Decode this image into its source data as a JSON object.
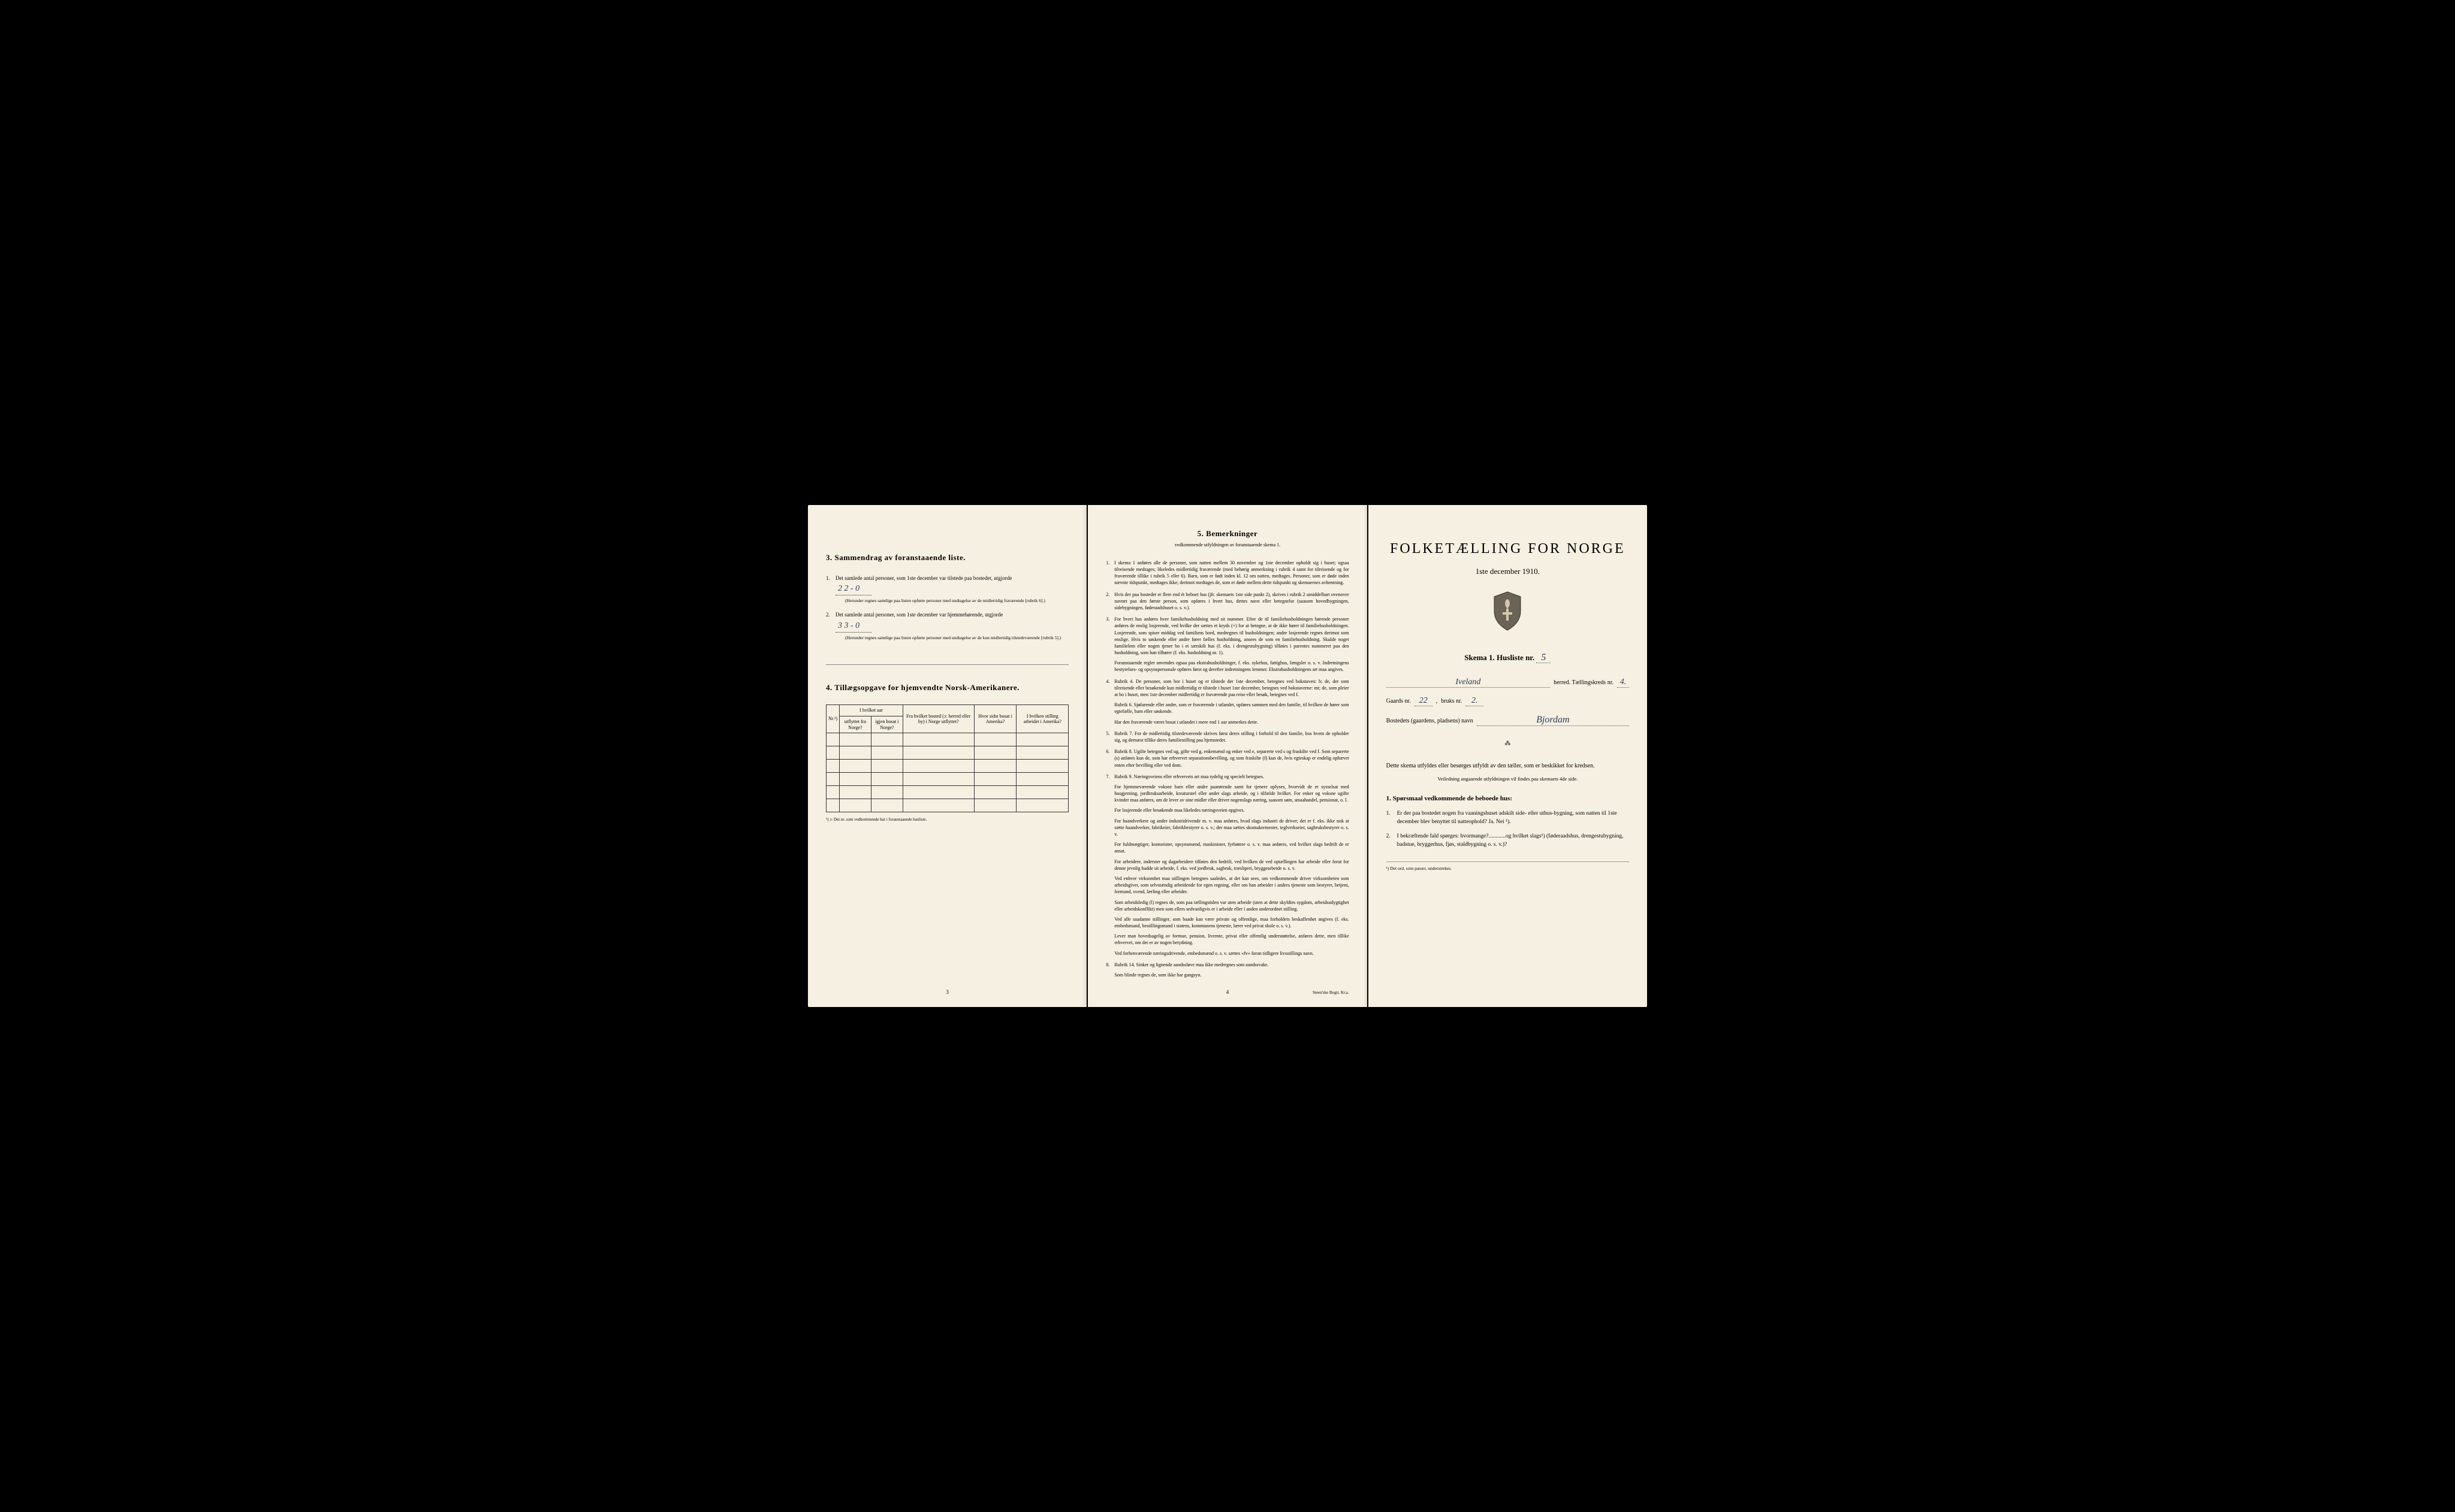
{
  "colors": {
    "page_bg": "#f5f0e1",
    "frame_bg": "#000000",
    "text": "#1a1a1a",
    "handwriting": "#2a3a5a",
    "border": "#333333"
  },
  "left": {
    "section3": {
      "heading": "3.   Sammendrag av foranstaaende liste.",
      "item1_text": "Det samlede antal personer, som 1ste december var tilstede paa bostedet, utgjorde",
      "item1_num": "1.",
      "item1_value": "2   2 - 0",
      "item1_note": "(Herunder regnes samtlige paa listen opførte personer med undtagelse av de midlertidig fraværende [rubrik 6].)",
      "item2_text": "Det samlede antal personer, som 1ste december var hjemmehørende, utgjorde",
      "item2_num": "2.",
      "item2_value": "3   3 - 0",
      "item2_note": "(Herunder regnes samtlige paa listen opførte personer med undtagelse av de kun midlertidig tilstedeværende [rubrik 5].)"
    },
    "section4": {
      "heading": "4.   Tillægsopgave for hjemvendte Norsk-Amerikanere.",
      "columns": {
        "col1": "Nr.¹)",
        "col2a": "I hvilket aar",
        "col2b": "utflyttet fra Norge?",
        "col2c": "igjen bosat i Norge?",
        "col3": "Fra hvilket bosted (ɔ: herred eller by) i Norge utflyttet?",
        "col4": "Hvor sidst bosat i Amerika?",
        "col5": "I hvilken stilling arbeidet i Amerika?"
      },
      "footnote": "¹) ɔ: Det nr. som vedkommende har i foranstaaende husliste.",
      "empty_rows": 6
    },
    "page_num": "3"
  },
  "middle": {
    "heading": "5.   Bemerkninger",
    "subtitle": "vedkommende utfyldningen av foranstaaende skema 1.",
    "items": [
      {
        "n": "1.",
        "text": "I skema 1 anføres alle de personer, som natten mellem 30 november og 1ste december opholdt sig i huset; ogsaa tilreisende medtages; likeledes midlertidig fraværende (med behørig anmerkning i rubrik 4 samt for tilreisende og for fraværende tillike i rubrik 5 eller 6). Barn, som er født inden kl. 12 om natten, medtages. Personer, som er døde inden nævnte tidspunkt, medtages ikke; derimot medtages de, som er døde mellem dette tidspunkt og skemaernes avhentning."
      },
      {
        "n": "2.",
        "text": "Hvis der paa bostedet er flere end ét beboet hus (jfr. skemaets 1ste side punkt 2), skrives i rubrik 2 umiddelbart ovenover navnet paa den første person, som opføres i hvert hus, dettes navn eller betegnelse (saasom hovedbygningen, sidebygningen, føderaadshuset o. s. v.)."
      },
      {
        "n": "3.",
        "text": "For hvert hus anføres hver familiehusholdning med sit nummer. Efter de til familiehusholdningen hørende personer anføres de enslig losjerende, ved hvilke der sættes et kryds (×) for at betegne, at de ikke hører til familiehusholdningen. Losjerende, som spiser middag ved familiens bord, medregnes til husholdningen; andre losjerende regnes derimot som enslige. Hvis to søskende eller andre fører fælles husholdning, ansees de som en familiehusholdning. Skulde noget familielem eller nogen tjener bo i et særskilt hus (f. eks. i drengestubygning) tilføies i parentes nummeret paa den husholdning, som han tilhører (f. eks. husholdning nr. 1).",
        "extra": "Foranstaaende regler anvendes ogsaa paa ekstrahusholdninger, f. eks. sykehus, fattighus, fængsler o. s. v. Indretningens bestyrelses- og opsynspersonale opføres først og derefter indretningens lemmer. Ekstrahusholdningens art maa angives."
      },
      {
        "n": "4.",
        "text": "Rubrik 4. De personer, som bor i huset og er tilstede der 1ste december, betegnes ved bokstaven: b; de, der som tilreisende eller besøkende kun midlertidig er tilstede i huset 1ste december, betegnes ved bokstaverne: mt; de, som pleier at bo i huset, men 1ste december midlertidig er fraværende paa reise eller besøk, betegnes ved f.",
        "sub1": "Rubrik 6. Sjøfarende eller andre, som er fraværende i utlandet, opføres sammen med den familie, til hvilken de hører som egtefælle, barn eller søskende.",
        "sub2": "Har den fraværende været bosat i utlandet i mere end 1 aar anmerkes dette."
      },
      {
        "n": "5.",
        "text": "Rubrik 7. For de midlertidig tilstedeværende skrives først deres stilling i forhold til den familie, hos hvem de opholder sig, og dernæst tillike deres familiestilling paa hjemstedet."
      },
      {
        "n": "6.",
        "text": "Rubrik 8. Ugifte betegnes ved ug, gifte ved g, enkemænd og enker ved e, separerte ved s og fraskilte ved f. Som separerte (s) anføres kun de, som har erhvervet separationsbevilling, og som fraskilte (f) kun de, hvis egteskap er endelig ophævet enten efter bevilling eller ved dom."
      },
      {
        "n": "7.",
        "text": "Rubrik 9. Næringsveiens eller erhvervets art maa tydelig og specielt betegnes.",
        "paras": [
          "For hjemmeværende voksne barn eller andre paarørende samt for tjenere oplyses, hvorvidt de er sysselsat med husgjerning, jordbruksarbeide, kreaturstel eller andet slags arbeide, og i tilfælde hvilket. For enker og voksne ugifte kvinder maa anføres, om de lever av sine midler eller driver nogenslags næring, saasom søm, smaahandel, pensionat, o. l.",
          "For losjerende eller besøkende maa likeledes næringsveien opgives.",
          "For haandverkere og andre industridrivende m. v. maa anføres, hvad slags industri de driver; det er f. eks. ikke nok at sætte haandverker, fabrikeier, fabrikbestyrer o. s. v.; der maa sættes skomakermester, teglverkseier, sagbruksbestyrer o. s. v.",
          "For fuldmægtiger, kontorister, opsynsmænd, maskinister, fyrbøtere o. s. v. maa anføres, ved hvilket slags bedrift de er ansat.",
          "For arbeidere, inderster og dagarbeidere tilføies den bedrift, ved hvilken de ved optællingen har arbeide eller forut for denne jevnlig hadde sit arbeide, f. eks. ved jordbruk, sagbruk, træsliperi, bryggearbeide o. s. v.",
          "Ved enhver virksomhet maa stillingen betegnes saaledes, at det kan sees, om vedkommende driver virksomheten som arbeidsgiver, som selvstændig arbeidende for egen regning, eller om han arbeider i andres tjeneste som bestyrer, betjent, formand, svend, lærling eller arbeider.",
          "Som arbeidsledig (l) regnes de, som paa tællingstiden var uten arbeide (uten at dette skyldtes sygdom, arbeidsudygtighet eller arbeidskonflikt) men som ellers sedvanligvis er i arbeide eller i anden underordnet stilling.",
          "Ved alle saadanne stillinger, som baade kan være private og offentlige, maa forholdets beskaffenhet angives (f. eks. embedsmand, bestillingsmand i statens, kommunens tjeneste, lærer ved privat skole o. s. v.).",
          "Lever man hovedsagelig av formue, pension, livrente, privat eller offentlig understøttelse, anføres dette, men tillike erhvervet, om det er av nogen betydning.",
          "Ved forhenværende næringsdrivende, embedsmænd o. s. v. sættes «fv» foran tidligere livsstillings navn."
        ]
      },
      {
        "n": "8.",
        "text": "Rubrik 14. Sinker og lignende aandssløve maa ikke medregnes som aandssvake.",
        "sub": "Som blinde regnes de, som ikke har gangsyn."
      }
    ],
    "page_num": "4",
    "printer": "Steen'ske Bogtr. Kr.a."
  },
  "right": {
    "main_title": "FOLKETÆLLING FOR NORGE",
    "date": "1ste december 1910.",
    "skema_label": "Skema 1.   Husliste nr.",
    "husliste_nr": "5",
    "herred_value": "Iveland",
    "herred_label": "herred.   Tællingskreds nr.",
    "kreds_nr": "4.",
    "gaards_label": "Gaards nr.",
    "gaards_nr": "22",
    "bruks_label": "bruks nr.",
    "bruks_nr": "2.",
    "bosted_label": "Bostedets (gaardens, pladsens) navn",
    "bosted_value": "Bjordam",
    "instruction": "Dette skema utfyldes eller besørges utfyldt av den tæller, som er beskikket for kredsen.",
    "instruction_sub": "Veiledning angaaende utfyldningen vil findes paa skemaets 4de side.",
    "questions_heading": "1. Spørsmaal vedkommende de beboede hus:",
    "q1_num": "1.",
    "q1_text": "Er der paa bostedet nogen fra vaaningshuset adskilt side- eller uthus-bygning, som natten til 1ste december blev benyttet til natteophold?   Ja.   Nei ¹).",
    "q2_num": "2.",
    "q2_text": "I bekræftende fald spørges: hvormange?............og hvilket slags¹) (føderaadshus, drengestubygning, badstue, bryggerhus, fjøs, staldbygning o. s. v.)?",
    "footnote": "¹) Det ord, som passer, understrekes."
  }
}
